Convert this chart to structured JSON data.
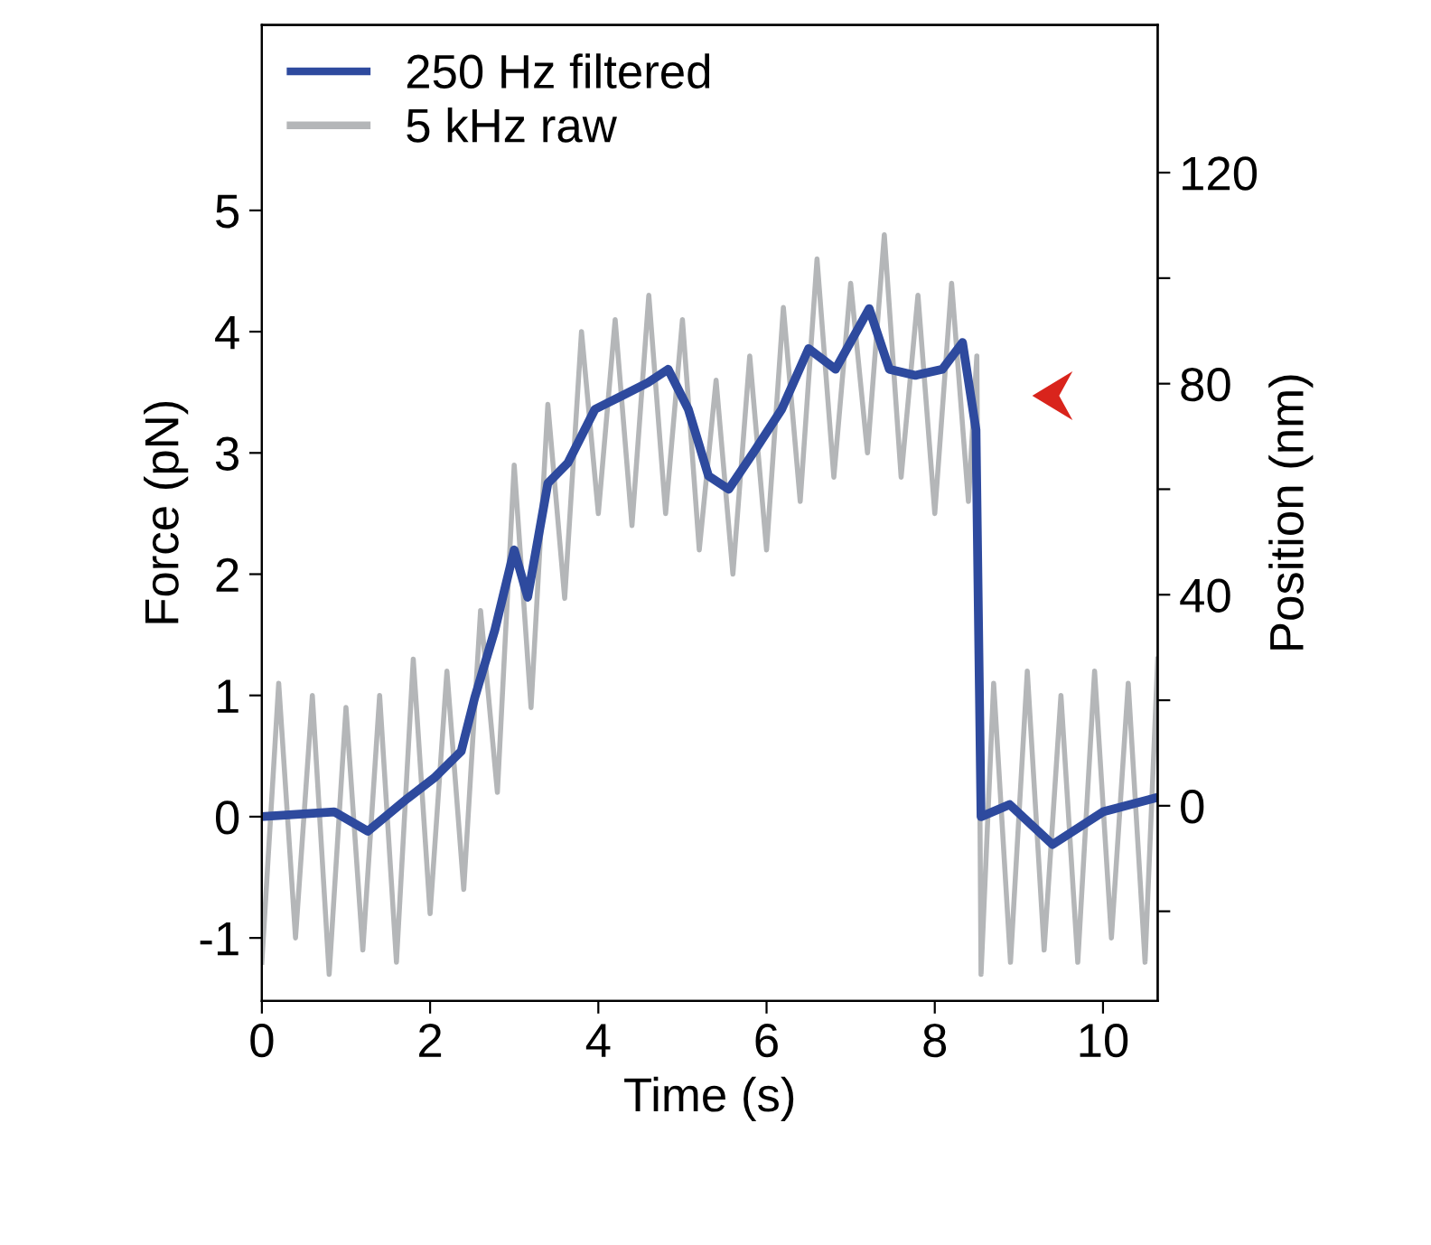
{
  "chart_data": {
    "type": "line",
    "xlabel": "Time (s)",
    "ylabel": "Force (pN)",
    "y2label": "Position (nm)",
    "xlim": [
      0,
      10.65
    ],
    "xticks": [
      0,
      2,
      4,
      6,
      8,
      10
    ],
    "ylim": [
      -1.52,
      6.53
    ],
    "yticks": [
      -1,
      0,
      1,
      2,
      3,
      4,
      5
    ],
    "y2lim": [
      -37,
      148
    ],
    "y2ticks": [
      {
        "value": -20,
        "label": null
      },
      0,
      {
        "value": 20,
        "label": null
      },
      40,
      {
        "value": 60,
        "label": null
      },
      80,
      {
        "value": 100,
        "label": null
      },
      120
    ],
    "grid": false,
    "legend": "top left",
    "series": [
      {
        "name": "5 kHz raw",
        "color": "#b4b6b8",
        "x": [
          0,
          0.2,
          0.4,
          0.6,
          0.8,
          1.0,
          1.2,
          1.4,
          1.6,
          1.8,
          2.0,
          2.2,
          2.4,
          2.6,
          2.8,
          3.0,
          3.2,
          3.4,
          3.6,
          3.8,
          4.0,
          4.2,
          4.4,
          4.6,
          4.8,
          5.0,
          5.2,
          5.4,
          5.6,
          5.8,
          6.0,
          6.2,
          6.4,
          6.6,
          6.8,
          7.0,
          7.2,
          7.4,
          7.6,
          7.8,
          8.0,
          8.2,
          8.4,
          8.5,
          8.55,
          8.7,
          8.9,
          9.1,
          9.3,
          9.5,
          9.7,
          9.9,
          10.1,
          10.3,
          10.5,
          10.65
        ],
        "values": [
          -1.2,
          1.1,
          -1.0,
          1.0,
          -1.3,
          0.9,
          -1.1,
          1.0,
          -1.2,
          1.3,
          -0.8,
          1.2,
          -0.6,
          1.7,
          0.2,
          2.9,
          0.9,
          3.4,
          1.8,
          4.0,
          2.5,
          4.1,
          2.4,
          4.3,
          2.5,
          4.1,
          2.2,
          3.6,
          2.0,
          3.8,
          2.2,
          4.2,
          2.6,
          4.6,
          2.8,
          4.4,
          3.0,
          4.8,
          2.8,
          4.3,
          2.5,
          4.4,
          2.6,
          3.8,
          -1.3,
          1.1,
          -1.2,
          1.2,
          -1.1,
          1.0,
          -1.2,
          1.2,
          -1.0,
          1.1,
          -1.2,
          1.3
        ]
      },
      {
        "name": "250 Hz filtered",
        "color": "#2e4a9e",
        "x": [
          0,
          0.86,
          1.26,
          1.73,
          2.05,
          2.37,
          2.53,
          2.77,
          3.0,
          3.16,
          3.4,
          3.64,
          3.96,
          4.28,
          4.59,
          4.83,
          5.07,
          5.31,
          5.55,
          5.87,
          6.18,
          6.5,
          6.82,
          7.22,
          7.46,
          7.77,
          8.09,
          8.33,
          8.49,
          8.55,
          8.89,
          9.4,
          10.0,
          10.6
        ],
        "values": [
          0,
          0.04,
          -0.12,
          0.15,
          0.32,
          0.54,
          0.98,
          1.54,
          2.2,
          1.81,
          2.75,
          2.92,
          3.36,
          3.47,
          3.58,
          3.69,
          3.36,
          2.81,
          2.7,
          3.03,
          3.36,
          3.86,
          3.69,
          4.19,
          3.69,
          3.64,
          3.69,
          3.91,
          3.19,
          0,
          0.1,
          -0.23,
          0.04,
          0.15
        ]
      }
    ]
  }
}
